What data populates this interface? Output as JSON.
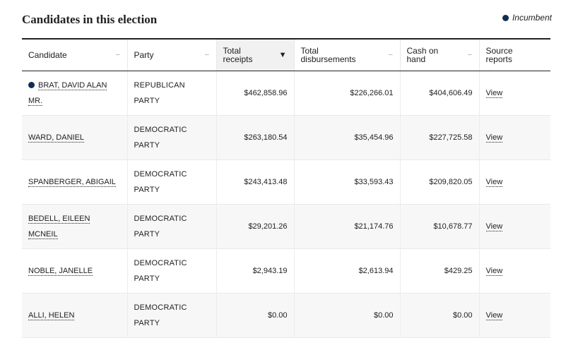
{
  "title": "Candidates in this election",
  "legend": {
    "label": "Incumbent",
    "color": "#112e51"
  },
  "columns": {
    "candidate": "Candidate",
    "party": "Party",
    "receipts_l1": "Total",
    "receipts_l2": "receipts",
    "disb_l1": "Total",
    "disb_l2": "disbursements",
    "cash_l1": "Cash on",
    "cash_l2": "hand",
    "source_l1": "Source",
    "source_l2": "reports"
  },
  "rows": [
    {
      "name": "BRAT, DAVID ALAN MR.",
      "incumbent": true,
      "party_l1": "REPUBLICAN",
      "party_l2": "PARTY",
      "receipts": "$462,858.96",
      "disbursements": "$226,266.01",
      "cash": "$404,606.49",
      "view": "View"
    },
    {
      "name": "WARD, DANIEL",
      "incumbent": false,
      "party_l1": "DEMOCRATIC",
      "party_l2": "PARTY",
      "receipts": "$263,180.54",
      "disbursements": "$35,454.96",
      "cash": "$227,725.58",
      "view": "View"
    },
    {
      "name": "SPANBERGER, ABIGAIL",
      "incumbent": false,
      "party_l1": "DEMOCRATIC",
      "party_l2": "PARTY",
      "receipts": "$243,413.48",
      "disbursements": "$33,593.43",
      "cash": "$209,820.05",
      "view": "View"
    },
    {
      "name_l1": "BEDELL, EILEEN",
      "name_l2": "MCNEIL",
      "incumbent": false,
      "party_l1": "DEMOCRATIC",
      "party_l2": "PARTY",
      "receipts": "$29,201.26",
      "disbursements": "$21,174.76",
      "cash": "$10,678.77",
      "view": "View"
    },
    {
      "name": "NOBLE, JANELLE",
      "incumbent": false,
      "party_l1": "DEMOCRATIC",
      "party_l2": "PARTY",
      "receipts": "$2,943.19",
      "disbursements": "$2,613.94",
      "cash": "$429.25",
      "view": "View"
    },
    {
      "name": "ALLI, HELEN",
      "incumbent": false,
      "party_l1": "DEMOCRATIC",
      "party_l2": "PARTY",
      "receipts": "$0.00",
      "disbursements": "$0.00",
      "cash": "$0.00",
      "view": "View"
    }
  ]
}
